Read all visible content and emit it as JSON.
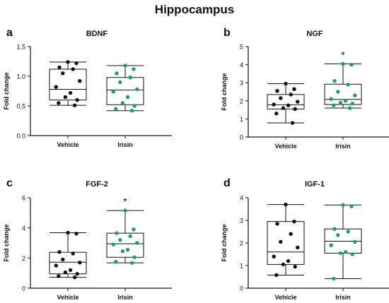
{
  "title": "Hippocampus",
  "colors": {
    "vehicle": "#111111",
    "irisin": "#1a9e74",
    "axis": "#111111"
  },
  "chart_data": [
    {
      "type": "box",
      "panel": "a",
      "title": "BDNF",
      "ylabel": "Fold change",
      "ylim": [
        0,
        1.5
      ],
      "yticks": [
        "0.0",
        "0.5",
        "1.0",
        "1.5"
      ],
      "categories": [
        "Vehicle",
        "Irisin"
      ],
      "significance": "",
      "series": [
        {
          "name": "Vehicle",
          "box": {
            "min": 0.51,
            "q1": 0.6,
            "median": 0.78,
            "q3": 1.12,
            "max": 1.24
          },
          "points": [
            1.24,
            1.22,
            1.15,
            1.12,
            1.05,
            0.92,
            0.82,
            0.72,
            0.65,
            0.6,
            0.55,
            0.51
          ]
        },
        {
          "name": "Irisin",
          "box": {
            "min": 0.42,
            "q1": 0.52,
            "median": 0.77,
            "q3": 0.98,
            "max": 1.18
          },
          "points": [
            1.18,
            1.12,
            1.05,
            0.98,
            0.9,
            0.78,
            0.74,
            0.65,
            0.55,
            0.5,
            0.45,
            0.42
          ]
        }
      ]
    },
    {
      "type": "box",
      "panel": "b",
      "title": "NGF",
      "ylabel": "Fold change",
      "ylim": [
        0,
        5
      ],
      "yticks": [
        "0",
        "1",
        "2",
        "3",
        "4",
        "5"
      ],
      "categories": [
        "Vehicle",
        "Irisin"
      ],
      "significance": "*",
      "series": [
        {
          "name": "Vehicle",
          "box": {
            "min": 0.78,
            "q1": 1.55,
            "median": 1.78,
            "q3": 2.35,
            "max": 2.95
          },
          "points": [
            2.95,
            2.65,
            2.55,
            2.35,
            2.15,
            1.95,
            1.8,
            1.75,
            1.6,
            1.55,
            1.3,
            0.78
          ]
        },
        {
          "name": "Irisin",
          "box": {
            "min": 1.6,
            "q1": 1.8,
            "median": 2.08,
            "q3": 2.92,
            "max": 4.05
          },
          "points": [
            4.05,
            4.0,
            3.1,
            2.9,
            2.5,
            2.3,
            2.1,
            2.0,
            1.9,
            1.85,
            1.75,
            1.6
          ]
        }
      ]
    },
    {
      "type": "box",
      "panel": "c",
      "title": "FGF-2",
      "ylabel": "Fold change",
      "ylim": [
        0,
        6
      ],
      "yticks": [
        "0",
        "2",
        "4",
        "6"
      ],
      "categories": [
        "Vehicle",
        "Irisin"
      ],
      "significance": "*",
      "series": [
        {
          "name": "Vehicle",
          "box": {
            "min": 0.72,
            "q1": 0.95,
            "median": 1.72,
            "q3": 2.38,
            "max": 3.68
          },
          "points": [
            3.68,
            3.62,
            2.4,
            2.3,
            1.9,
            1.7,
            1.5,
            1.2,
            1.05,
            0.95,
            0.8,
            0.72
          ]
        },
        {
          "name": "Irisin",
          "box": {
            "min": 1.68,
            "q1": 2.05,
            "median": 2.95,
            "q3": 3.65,
            "max": 5.15
          },
          "points": [
            5.15,
            3.9,
            3.65,
            3.45,
            3.2,
            3.0,
            2.9,
            2.55,
            2.45,
            2.05,
            1.75,
            1.68
          ]
        }
      ]
    },
    {
      "type": "box",
      "panel": "d",
      "title": "IGF-1",
      "ylabel": "Fold change",
      "ylim": [
        0,
        4
      ],
      "yticks": [
        "0",
        "1",
        "2",
        "3",
        "4"
      ],
      "categories": [
        "Vehicle",
        "Irisin"
      ],
      "significance": "",
      "series": [
        {
          "name": "Vehicle",
          "box": {
            "min": 0.58,
            "q1": 1.05,
            "median": 1.6,
            "q3": 2.95,
            "max": 3.7
          },
          "points": [
            3.7,
            2.95,
            2.85,
            2.4,
            2.05,
            1.8,
            1.4,
            1.2,
            1.05,
            0.95,
            0.58
          ]
        },
        {
          "name": "Irisin",
          "box": {
            "min": 0.42,
            "q1": 1.55,
            "median": 2.08,
            "q3": 2.62,
            "max": 3.68
          },
          "points": [
            3.68,
            3.62,
            2.62,
            2.5,
            2.35,
            2.05,
            1.9,
            1.6,
            1.55,
            1.5,
            0.42
          ]
        }
      ]
    }
  ]
}
